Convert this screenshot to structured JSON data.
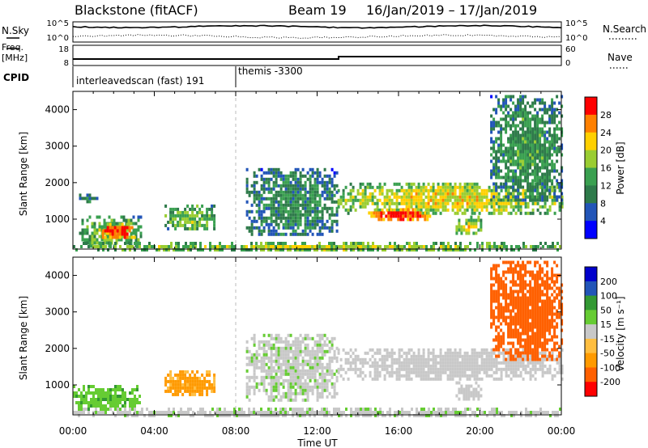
{
  "header": {
    "station": "Blackstone (fitACF)",
    "beam": "Beam 19",
    "date_range": "16/Jan/2019 – 17/Jan/2019"
  },
  "summary": {
    "left_labels": [
      "N.Sky",
      "Freq.",
      "[MHz]",
      "CPID"
    ],
    "right_labels": [
      "N.Search",
      "Nave"
    ],
    "nsky_ticks": [
      "10^5",
      "10^0"
    ],
    "freq_ticks": [
      "18",
      "8"
    ],
    "nave_ticks": [
      "60",
      "0"
    ],
    "cpid_segments": [
      {
        "label": "interleavedscan (fast) 191",
        "start_hour": 0
      },
      {
        "label": "themis -3300",
        "start_hour": 8
      }
    ]
  },
  "colors": {
    "background": "#ffffff",
    "axis": "#000000",
    "ground_scatter": "#c0c0c0",
    "power_scale": [
      "#0000ff",
      "#2255b8",
      "#2e7a4a",
      "#3aa050",
      "#9acd32",
      "#ffd000",
      "#ff8000",
      "#ff0000"
    ],
    "velocity_scale": [
      "#ff0000",
      "#ff6000",
      "#ff9a00",
      "#ffbe40",
      "#c8c8c8",
      "#66cc33",
      "#339933",
      "#2255b8",
      "#0000cc"
    ]
  },
  "chart_data": [
    {
      "type": "heatmap",
      "name_hint": "power",
      "ylabel": "Slant Range [km]",
      "ylim": [
        180,
        4500
      ],
      "yticks": [
        "1000",
        "2000",
        "3000",
        "4000"
      ],
      "xlim_hours": [
        0,
        24
      ],
      "colorbar": {
        "label": "Power [dB]",
        "ticks": [
          "4",
          "8",
          "12",
          "16",
          "20",
          "24",
          "28"
        ],
        "range": [
          0,
          30
        ]
      },
      "features": [
        {
          "t": [
            0.3,
            1.2
          ],
          "r": [
            1500,
            1700
          ],
          "power": 9
        },
        {
          "t": [
            0.3,
            3.3
          ],
          "r": [
            300,
            1100
          ],
          "power": 14
        },
        {
          "t": [
            1.3,
            3.0
          ],
          "r": [
            500,
            900
          ],
          "power": 26
        },
        {
          "t": [
            0.0,
            24.0
          ],
          "r": [
            180,
            380
          ],
          "power": 16
        },
        {
          "t": [
            4.5,
            7.0
          ],
          "r": [
            700,
            1400
          ],
          "power": 14
        },
        {
          "t": [
            8.5,
            13.0
          ],
          "r": [
            600,
            2400
          ],
          "power": 10
        },
        {
          "t": [
            13.0,
            24.0
          ],
          "r": [
            1200,
            2000
          ],
          "power": 18
        },
        {
          "t": [
            14.5,
            17.5
          ],
          "r": [
            1000,
            1300
          ],
          "power": 27
        },
        {
          "t": [
            18.8,
            20.0
          ],
          "r": [
            600,
            1100
          ],
          "power": 17
        },
        {
          "t": [
            20.5,
            24.0
          ],
          "r": [
            1500,
            4400
          ],
          "power": 11
        }
      ]
    },
    {
      "type": "heatmap",
      "name_hint": "velocity",
      "ylabel": "Slant Range [km]",
      "ylim": [
        180,
        4500
      ],
      "yticks": [
        "1000",
        "2000",
        "3000",
        "4000"
      ],
      "xlim_hours": [
        0,
        24
      ],
      "colorbar": {
        "label": "Velocity [m s⁻¹]",
        "ticks": [
          "200",
          "100",
          "50",
          "15",
          "-15",
          "-50",
          "-100",
          "-200"
        ],
        "range": [
          -250,
          250
        ]
      },
      "features": [
        {
          "t": [
            0.0,
            3.3
          ],
          "r": [
            300,
            1000
          ],
          "velocity": 40
        },
        {
          "t": [
            0.0,
            24.0
          ],
          "r": [
            180,
            380
          ],
          "velocity": 5
        },
        {
          "t": [
            4.5,
            7.0
          ],
          "r": [
            700,
            1400
          ],
          "velocity": -60
        },
        {
          "t": [
            8.5,
            13.0
          ],
          "r": [
            600,
            2400
          ],
          "velocity": 5
        },
        {
          "t": [
            13.0,
            24.0
          ],
          "r": [
            1200,
            2000
          ],
          "velocity": 0
        },
        {
          "t": [
            18.8,
            20.0
          ],
          "r": [
            600,
            1100
          ],
          "velocity": 0
        },
        {
          "t": [
            20.5,
            24.0
          ],
          "r": [
            1700,
            4400
          ],
          "velocity": -180
        }
      ]
    }
  ],
  "x_axis": {
    "label": "Time UT",
    "ticks": [
      "00:00",
      "04:00",
      "08:00",
      "12:00",
      "16:00",
      "20:00",
      "00:00"
    ]
  }
}
